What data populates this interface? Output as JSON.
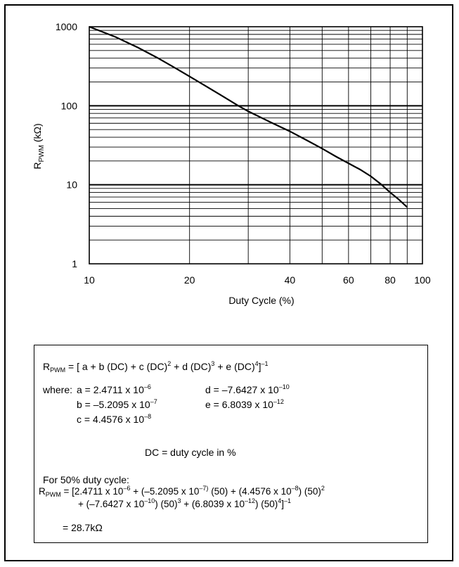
{
  "chart_data": {
    "type": "line",
    "xscale": "log",
    "yscale": "log",
    "xlim": [
      10,
      100
    ],
    "ylim": [
      1,
      1000
    ],
    "xticks": [
      10,
      20,
      40,
      60,
      80,
      100
    ],
    "xtick_labels": [
      "10",
      "20",
      "40",
      "60",
      "80",
      "100"
    ],
    "yticks": [
      1,
      10,
      100,
      1000
    ],
    "ytick_labels": [
      "1",
      "10",
      "100",
      "1000"
    ],
    "xlabel": "Duty Cycle (%)",
    "ylabel": {
      "main": "R",
      "sub": "PWM",
      "unit": " (kΩ)"
    },
    "grid": true,
    "series": [
      {
        "x": [
          10,
          12,
          14,
          16,
          18,
          20,
          22,
          25,
          28,
          30,
          35,
          40,
          45,
          50,
          55,
          60,
          65,
          70,
          75,
          80,
          85,
          90
        ],
        "values": [
          1000,
          742,
          545,
          405,
          305,
          235,
          185,
          134,
          100,
          85,
          62,
          47.5,
          36.5,
          28.7,
          22.8,
          18.7,
          15.6,
          12.8,
          10.2,
          8.0,
          6.5,
          5.2
        ]
      }
    ]
  },
  "formula": {
    "main": {
      "lhs": "R",
      "lhs_sub": "PWM",
      "t1": " = [ a +  b (DC) + c (DC)",
      "p1": "2",
      "t2": " + d (DC)",
      "p2": "3",
      "t3": " + e (DC)",
      "p3": "4",
      "t4": "]",
      "p4": "–1"
    },
    "coeffs": {
      "where": "where:",
      "a_label": "a =  2.4711 x 10",
      "a_exp": "–6",
      "b_label": "b =  –5.2095 x 10",
      "b_exp": "–7",
      "c_label": "c =  4.4576 x 10",
      "c_exp": "–8",
      "d_label": "d =  –7.6427 x 10",
      "d_exp": "–10",
      "e_label": "e =  6.8039 x 10",
      "e_exp": "–12"
    },
    "dc_def": "DC = duty cycle in %",
    "example": {
      "heading": "For 50% duty cycle:",
      "lhs": "R",
      "lhs_sub": "PWM",
      "l1a": " = [2.4711 x 10",
      "l1a_e": "–6",
      "l1b": " + (–5.2095 x 10",
      "l1b_e": "–7)",
      "l1c": " (50) + (4.4576 x 10",
      "l1c_e": "–8",
      "l1d": ") (50)",
      "l1d_e": "2",
      "l2a": "+ (–7.6427 x 10",
      "l2a_e": "–10",
      "l2b": ") (50)",
      "l2b_e": "3",
      "l2c": " + (6.8039 x 10",
      "l2c_e": "–12",
      "l2d": ") (50)",
      "l2d_e": "4",
      "l2e": "]",
      "l2e_e": "–1",
      "result": "= 28.7kΩ"
    }
  }
}
